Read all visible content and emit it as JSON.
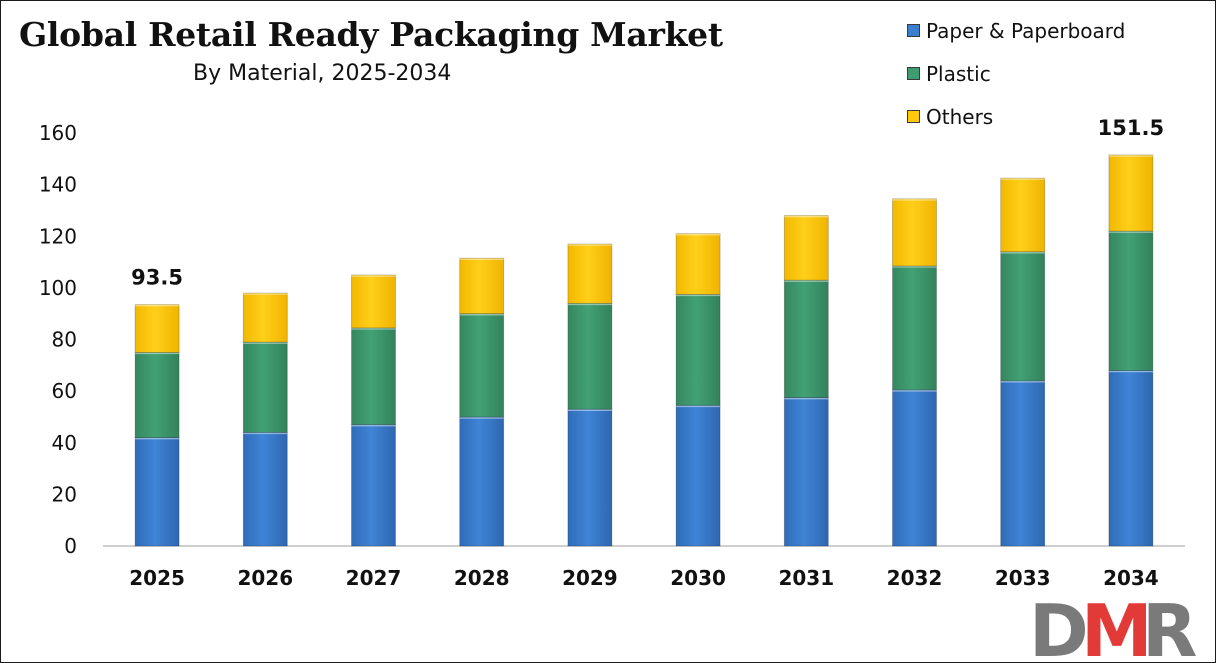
{
  "title": "Global Retail Ready Packaging Market",
  "subtitle": "By Material, 2025-2034",
  "logo_text": "DMR",
  "colors": {
    "paper": "#3c7fcf",
    "plastic": "#3f9b70",
    "others": "#ffc90a",
    "axis": "#bfbfbf",
    "text": "#111111",
    "logo_grey": "#7a7a7a",
    "logo_red": "#e23a37"
  },
  "chart_data": {
    "type": "bar",
    "stacked": true,
    "categories": [
      "2025",
      "2026",
      "2027",
      "2028",
      "2029",
      "2030",
      "2031",
      "2032",
      "2033",
      "2034"
    ],
    "series": [
      {
        "name": "Paper & Paperboard",
        "values": [
          42,
          44,
          47,
          50,
          53,
          54.5,
          57.5,
          60.5,
          64,
          68
        ]
      },
      {
        "name": "Plastic",
        "values": [
          33,
          35,
          37.5,
          40,
          41,
          43,
          45.5,
          48,
          50,
          54
        ]
      },
      {
        "name": "Others",
        "values": [
          18.5,
          19,
          20.5,
          21.5,
          23,
          23.5,
          25,
          26,
          28.5,
          29.5
        ]
      }
    ],
    "yticks": [
      0,
      20,
      40,
      60,
      80,
      100,
      120,
      140,
      160
    ],
    "ylim": [
      0,
      160
    ],
    "grid": false,
    "legend_position": "top-right",
    "data_labels": [
      {
        "category": "2025",
        "text": "93.5"
      },
      {
        "category": "2034",
        "text": "151.5"
      }
    ]
  }
}
